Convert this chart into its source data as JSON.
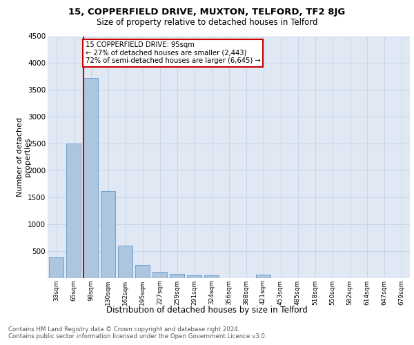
{
  "title1": "15, COPPERFIELD DRIVE, MUXTON, TELFORD, TF2 8JG",
  "title2": "Size of property relative to detached houses in Telford",
  "xlabel": "Distribution of detached houses by size in Telford",
  "ylabel": "Number of detached\nproperties",
  "categories": [
    "33sqm",
    "65sqm",
    "98sqm",
    "130sqm",
    "162sqm",
    "195sqm",
    "227sqm",
    "259sqm",
    "291sqm",
    "324sqm",
    "356sqm",
    "388sqm",
    "421sqm",
    "453sqm",
    "485sqm",
    "518sqm",
    "550sqm",
    "582sqm",
    "614sqm",
    "647sqm",
    "679sqm"
  ],
  "values": [
    375,
    2500,
    3720,
    1620,
    600,
    240,
    110,
    65,
    40,
    40,
    0,
    0,
    60,
    0,
    0,
    0,
    0,
    0,
    0,
    0,
    0
  ],
  "bar_color": "#adc6e0",
  "bar_edge_color": "#6699cc",
  "annotation_text": "15 COPPERFIELD DRIVE: 95sqm\n← 27% of detached houses are smaller (2,443)\n72% of semi-detached houses are larger (6,645) →",
  "annotation_box_color": "#ffffff",
  "annotation_box_edge": "#cc0000",
  "ylim": [
    0,
    4500
  ],
  "yticks": [
    0,
    500,
    1000,
    1500,
    2000,
    2500,
    3000,
    3500,
    4000,
    4500
  ],
  "footer_text": "Contains HM Land Registry data © Crown copyright and database right 2024.\nContains public sector information licensed under the Open Government Licence v3.0.",
  "grid_color": "#c8d4e8",
  "background_color": "#e0e8f4"
}
